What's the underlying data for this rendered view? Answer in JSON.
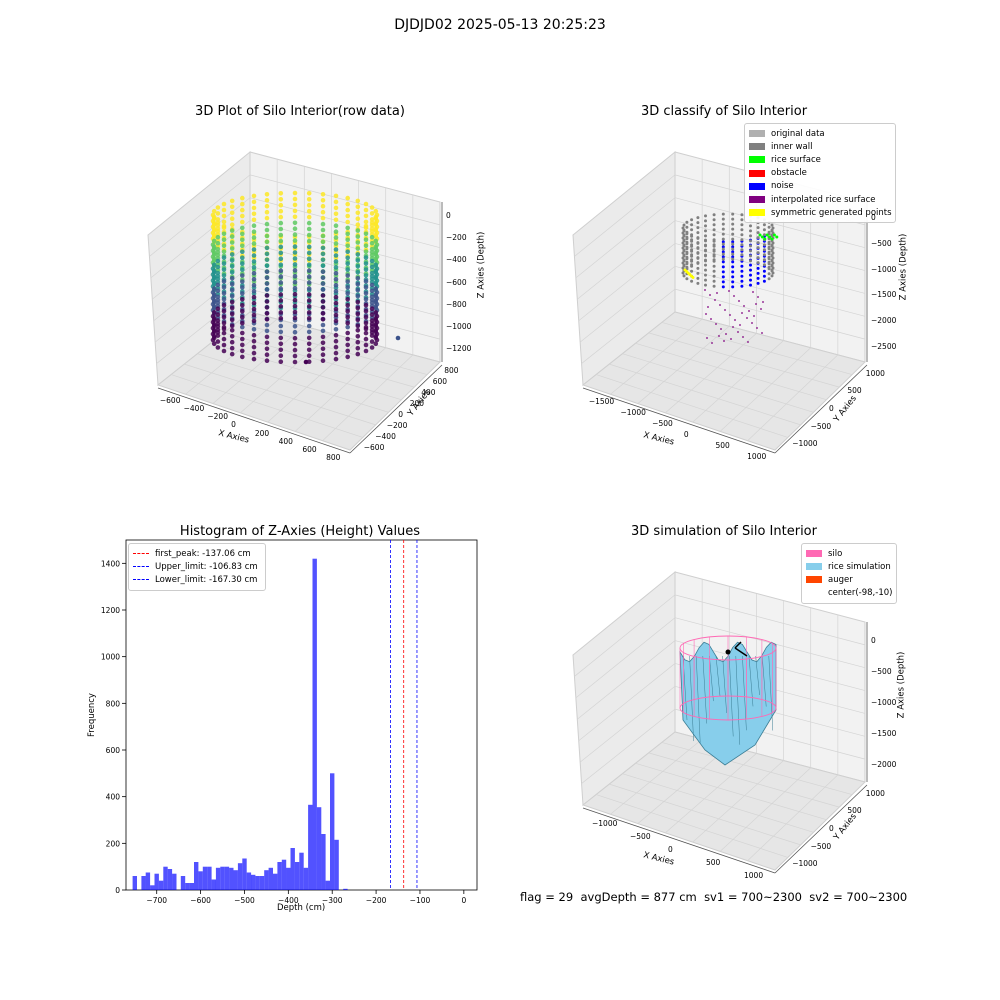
{
  "figure": {
    "suptitle": "DJDJD02 2025-05-13 20:25:23"
  },
  "panels": {
    "raw": {
      "title": "3D Plot of Silo Interior(row data)",
      "xlabel": "X Axies",
      "ylabel": "Y Axies",
      "zlabel": "Z Axies (Depth)",
      "xticks": [
        "−600",
        "−400",
        "−200",
        "0",
        "200",
        "400",
        "600",
        "800"
      ],
      "yticks": [
        "−600",
        "−400",
        "−200",
        "0",
        "200",
        "400",
        "600",
        "800"
      ],
      "zticks": [
        "0",
        "−200",
        "−400",
        "−600",
        "−800",
        "−1000",
        "−1200"
      ],
      "colormap": "viridis"
    },
    "classify": {
      "title": "3D classify of Silo Interior",
      "xlabel": "X Axies",
      "ylabel": "Y Axies",
      "zlabel": "Z Axies (Depth)",
      "xticks": [
        "−1500",
        "−1000",
        "−500",
        "0",
        "500",
        "1000"
      ],
      "yticks": [
        "−1000",
        "−500",
        "0",
        "500",
        "1000"
      ],
      "zticks": [
        "0",
        "−500",
        "−1000",
        "−1500",
        "−2000",
        "−2500"
      ],
      "legend": [
        {
          "label": "original data",
          "color": "#b0b0b0"
        },
        {
          "label": "inner wall",
          "color": "#808080"
        },
        {
          "label": "rice surface",
          "color": "#00ff00"
        },
        {
          "label": "obstacle",
          "color": "#ff0000"
        },
        {
          "label": "noise",
          "color": "#0000ff"
        },
        {
          "label": "interpolated rice surface",
          "color": "#800080"
        },
        {
          "label": "symmetric generated points",
          "color": "#ffff00"
        }
      ]
    },
    "hist": {
      "title": "Histogram of Z-Axies (Height) Values",
      "xlabel": "Depth (cm)",
      "ylabel": "Frequency",
      "legend": [
        {
          "label": "first_peak: -137.06 cm",
          "color": "#ff0000"
        },
        {
          "label": "Upper_limit: -106.83 cm",
          "color": "#0000ff"
        },
        {
          "label": "Lower_limit: -167.30 cm",
          "color": "#0000ff"
        }
      ]
    },
    "sim": {
      "title": "3D simulation of Silo Interior",
      "xlabel": "X Axies",
      "ylabel": "Y Axies",
      "zlabel": "Z Axies (Depth)",
      "xticks": [
        "−1000",
        "−500",
        "0",
        "500",
        "1000"
      ],
      "yticks": [
        "−1000",
        "−500",
        "0",
        "500",
        "1000"
      ],
      "zticks": [
        "0",
        "−500",
        "−1000",
        "−1500",
        "−2000"
      ],
      "legend": [
        {
          "label": "silo",
          "color": "#ff69b4"
        },
        {
          "label": "rice simulation",
          "color": "#87ceeb"
        },
        {
          "label": "auger",
          "color": "#ff4500"
        },
        {
          "label": "center(-98,-10)",
          "color": ""
        }
      ]
    }
  },
  "status": {
    "flag": "flag = 29",
    "avgdepth": "avgDepth = 877 cm",
    "sv1": "sv1 = 700~2300",
    "sv2": "sv2 = 700~2300"
  },
  "chart_data": [
    {
      "type": "scatter",
      "title": "3D Plot of Silo Interior(row data)",
      "xlabel": "X Axies",
      "ylabel": "Y Axies",
      "zlabel": "Z Axies (Depth)",
      "xlim": [
        -700,
        850
      ],
      "ylim": [
        -650,
        850
      ],
      "zlim": [
        -1250,
        50
      ],
      "description_of_points": "cylindrical wall of points, radius ~500, depth 0 to about -1150, coloured by depth"
    },
    {
      "type": "scatter",
      "title": "3D classify of Silo Interior",
      "xlim": [
        -1600,
        1200
      ],
      "ylim": [
        -1200,
        1200
      ],
      "zlim": [
        -2600,
        100
      ],
      "series": [
        {
          "name": "original data"
        },
        {
          "name": "inner wall"
        },
        {
          "name": "rice surface"
        },
        {
          "name": "obstacle"
        },
        {
          "name": "noise"
        },
        {
          "name": "interpolated rice surface"
        },
        {
          "name": "symmetric generated points"
        }
      ]
    },
    {
      "type": "bar",
      "title": "Histogram of Z-Axies (Height) Values",
      "xlabel": "Depth (cm)",
      "ylabel": "Frequency",
      "xlim": [
        -770,
        30
      ],
      "ylim": [
        0,
        1500
      ],
      "xticks": [
        -700,
        -600,
        -500,
        -400,
        -300,
        -200,
        -100,
        0
      ],
      "yticks": [
        0,
        200,
        400,
        600,
        800,
        1000,
        1200,
        1400
      ],
      "bin_width": 10,
      "bins": [
        {
          "x": -750,
          "y": 60
        },
        {
          "x": -730,
          "y": 60
        },
        {
          "x": -720,
          "y": 75
        },
        {
          "x": -710,
          "y": 20
        },
        {
          "x": -700,
          "y": 70
        },
        {
          "x": -690,
          "y": 40
        },
        {
          "x": -680,
          "y": 100
        },
        {
          "x": -670,
          "y": 90
        },
        {
          "x": -660,
          "y": 70
        },
        {
          "x": -640,
          "y": 60
        },
        {
          "x": -630,
          "y": 30
        },
        {
          "x": -620,
          "y": 30
        },
        {
          "x": -610,
          "y": 120
        },
        {
          "x": -600,
          "y": 80
        },
        {
          "x": -590,
          "y": 100
        },
        {
          "x": -580,
          "y": 100
        },
        {
          "x": -570,
          "y": 45
        },
        {
          "x": -560,
          "y": 95
        },
        {
          "x": -550,
          "y": 100
        },
        {
          "x": -540,
          "y": 100
        },
        {
          "x": -530,
          "y": 95
        },
        {
          "x": -520,
          "y": 85
        },
        {
          "x": -510,
          "y": 115
        },
        {
          "x": -500,
          "y": 135
        },
        {
          "x": -490,
          "y": 75
        },
        {
          "x": -480,
          "y": 65
        },
        {
          "x": -470,
          "y": 60
        },
        {
          "x": -460,
          "y": 60
        },
        {
          "x": -450,
          "y": 85
        },
        {
          "x": -440,
          "y": 95
        },
        {
          "x": -430,
          "y": 70
        },
        {
          "x": -420,
          "y": 120
        },
        {
          "x": -410,
          "y": 130
        },
        {
          "x": -400,
          "y": 95
        },
        {
          "x": -390,
          "y": 180
        },
        {
          "x": -380,
          "y": 120
        },
        {
          "x": -370,
          "y": 160
        },
        {
          "x": -360,
          "y": 95
        },
        {
          "x": -350,
          "y": 365
        },
        {
          "x": -340,
          "y": 1420
        },
        {
          "x": -330,
          "y": 355
        },
        {
          "x": -320,
          "y": 240
        },
        {
          "x": -310,
          "y": 40
        },
        {
          "x": -300,
          "y": 500
        },
        {
          "x": -290,
          "y": 215
        },
        {
          "x": -270,
          "y": 5
        }
      ],
      "vlines": [
        {
          "label": "first_peak: -137.06 cm",
          "x": -137.06
        },
        {
          "label": "Upper_limit: -106.83 cm",
          "x": -106.83
        },
        {
          "label": "Lower_limit: -167.30 cm",
          "x": -167.3
        }
      ]
    },
    {
      "type": "area",
      "title": "3D simulation of Silo Interior",
      "xlim": [
        -1300,
        1300
      ],
      "ylim": [
        -1200,
        1200
      ],
      "zlim": [
        -2300,
        100
      ],
      "series": [
        {
          "name": "silo"
        },
        {
          "name": "rice simulation"
        },
        {
          "name": "auger"
        },
        {
          "name": "center(-98,-10)"
        }
      ]
    }
  ]
}
